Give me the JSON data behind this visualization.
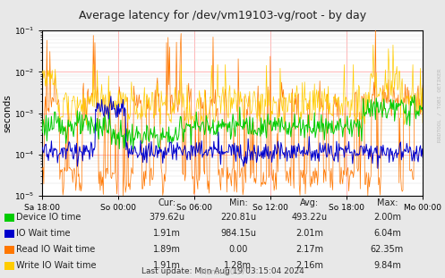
{
  "title": "Average latency for /dev/vm19103-vg/root - by day",
  "ylabel": "seconds",
  "bg_color": "#e8e8e8",
  "plot_bg_color": "#ffffff",
  "ylim_low": 1e-05,
  "ylim_high": 0.1,
  "xtick_labels": [
    "Sa 18:00",
    "So 00:00",
    "So 06:00",
    "So 12:00",
    "So 18:00",
    "Mo 00:00"
  ],
  "watermark": "RRDTOOL / TOBI OETIKER",
  "munin_label": "Munin 2.0.57",
  "legend": [
    {
      "label": "Device IO time",
      "color": "#00cc00"
    },
    {
      "label": "IO Wait time",
      "color": "#0000cc"
    },
    {
      "label": "Read IO Wait time",
      "color": "#ff7700"
    },
    {
      "label": "Write IO Wait time",
      "color": "#ffcc00"
    }
  ],
  "stats_header": [
    "Cur:",
    "Min:",
    "Avg:",
    "Max:"
  ],
  "legend_stats": {
    "cur": [
      "379.62u",
      "1.91m",
      "1.89m",
      "1.91m"
    ],
    "min": [
      "220.81u",
      "984.15u",
      "0.00",
      "1.28m"
    ],
    "avg": [
      "493.22u",
      "2.01m",
      "2.17m",
      "2.16m"
    ],
    "max": [
      "2.00m",
      "6.04m",
      "62.35m",
      "9.84m"
    ]
  },
  "last_update": "Last update: Mon Aug 19 03:15:04 2024"
}
